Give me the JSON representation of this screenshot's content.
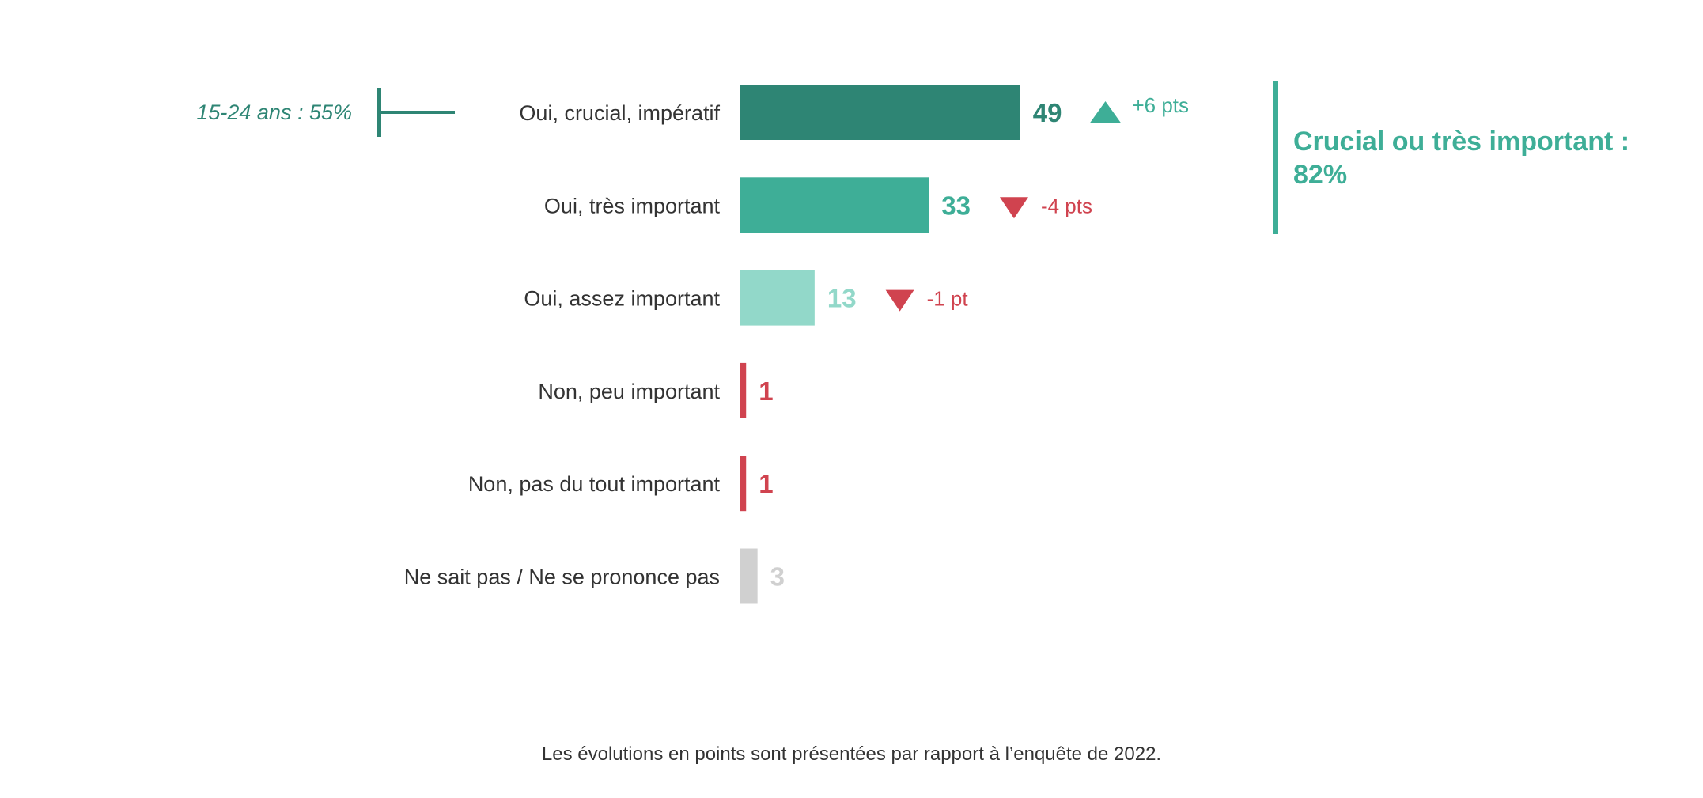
{
  "chart_data": {
    "type": "bar",
    "orientation": "horizontal",
    "categories": [
      "Oui, crucial, impératif",
      "Oui, très important",
      "Oui, assez important",
      "Non, peu important",
      "Non, pas du tout important",
      "Ne sait pas / Ne se prononce pas"
    ],
    "values": [
      49,
      33,
      13,
      1,
      1,
      3
    ],
    "value_labels": [
      "49",
      "33",
      "13",
      "1",
      "1",
      "3"
    ],
    "colors": [
      "#2e8574",
      "#3eae97",
      "#92d8c9",
      "#d0434f",
      "#d0434f",
      "#d0d0d0"
    ],
    "changes": [
      {
        "text": "+6 pts",
        "direction": "up"
      },
      {
        "text": "-4 pts",
        "direction": "down"
      },
      {
        "text": "-1 pt",
        "direction": "down"
      },
      null,
      null,
      null
    ],
    "change_colors": {
      "up": "#3eae97",
      "down": "#d0434f"
    },
    "annotation": {
      "text": "15-24 ans : 55%",
      "value": 55,
      "category_index": 0,
      "color": "#2e8574"
    },
    "callout": {
      "lines": [
        "Crucial ou très important :",
        "82%"
      ],
      "color": "#3eae97"
    },
    "xlim": [
      0,
      100
    ],
    "footnote": "Les évolutions en points sont présentées par rapport à l’enquête de 2022."
  }
}
